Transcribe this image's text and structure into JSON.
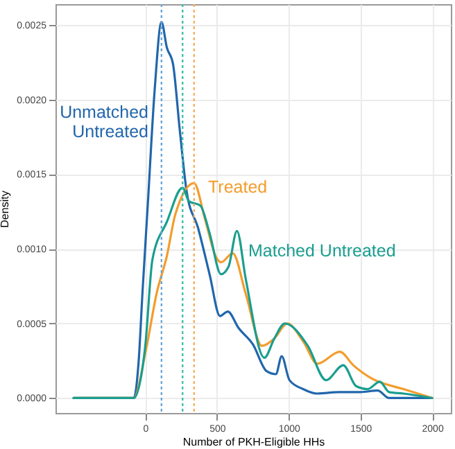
{
  "chart_data": {
    "type": "line",
    "xlabel": "Number of PKH-Eligible HHs",
    "ylabel": "Density",
    "xlim": [
      -626,
      2130
    ],
    "ylim": [
      -0.0001,
      0.00264
    ],
    "xticks": [
      0,
      500,
      1000,
      1500,
      2000
    ],
    "yticks": [
      {
        "value": 0,
        "label": "0.0000"
      },
      {
        "value": 0.0005,
        "label": "0.0005"
      },
      {
        "value": 0.001,
        "label": "0.0010"
      },
      {
        "value": 0.0015,
        "label": "0.0015"
      },
      {
        "value": 0.002,
        "label": "0.0020"
      },
      {
        "value": 0.0025,
        "label": "0.0025"
      }
    ],
    "grid": true,
    "legend": false,
    "marker": "none",
    "line_style": "solid",
    "series": [
      {
        "name": "Unmatched Untreated",
        "color": "#2166ac",
        "x": [
          -500,
          -150,
          -80,
          -46,
          -20,
          17,
          65,
          113,
          150,
          193,
          240,
          289,
          368,
          448,
          521,
          575,
          650,
          750,
          846,
          910,
          951,
          1005,
          1100,
          1197,
          1350,
          1500,
          1620,
          1700,
          1850,
          2000
        ],
        "values": [
          0,
          0,
          0,
          0.00025,
          0.0007,
          0.00129,
          0.00206,
          0.00252,
          0.00235,
          0.00224,
          0.0018,
          0.00138,
          0.00114,
          0.00083,
          0.00055,
          0.00058,
          0.00047,
          0.00036,
          0.00018,
          0.00016,
          0.00028,
          0.00012,
          6e-05,
          3e-05,
          4e-05,
          4e-05,
          5e-05,
          0,
          0,
          0
        ]
      },
      {
        "name": "Treated",
        "color": "#f39c2b",
        "x": [
          -500,
          -150,
          -80,
          0,
          81,
          150,
          209,
          340,
          416,
          496,
          528,
          610,
          700,
          813,
          900,
          990,
          1100,
          1200,
          1356,
          1450,
          1580,
          1800,
          2000
        ],
        "values": [
          0,
          0,
          0,
          0.0003,
          0.00071,
          0.00095,
          0.00123,
          0.00144,
          0.0012,
          0.00094,
          0.00091,
          0.00097,
          0.0007,
          0.00035,
          0.0004,
          0.0005,
          0.00038,
          0.00023,
          0.00031,
          0.00022,
          0.00013,
          6e-05,
          0
        ]
      },
      {
        "name": "Matched Untreated",
        "color": "#1a9e8f",
        "x": [
          -500,
          -150,
          -80,
          0,
          50,
          150,
          260,
          304,
          384,
          447,
          528,
          580,
          639,
          700,
          830,
          900,
          973,
          1133,
          1260,
          1380,
          1470,
          1550,
          1635,
          1700,
          1800,
          2000
        ],
        "values": [
          0,
          0,
          0,
          0.00035,
          0.00093,
          0.00118,
          0.00141,
          0.00132,
          0.00129,
          0.00111,
          0.00083,
          0.00088,
          0.00112,
          0.0008,
          0.00027,
          0.0004,
          0.0005,
          0.00035,
          0.00012,
          0.00022,
          8e-05,
          6e-05,
          0.00011,
          4e-05,
          3e-05,
          0
        ]
      }
    ],
    "ref_lines": [
      {
        "axis": "x",
        "value": 113,
        "color": "#6aa6d8",
        "line_style": "dotted"
      },
      {
        "axis": "x",
        "value": 260,
        "color": "#3cbfae",
        "line_style": "dotted"
      },
      {
        "axis": "x",
        "value": 340,
        "color": "#f5b061",
        "line_style": "dotted"
      }
    ]
  }
}
